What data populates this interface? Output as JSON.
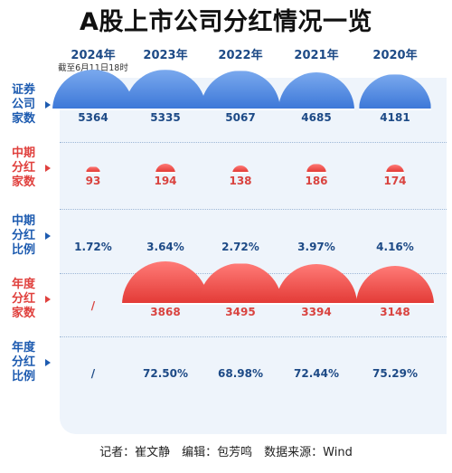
{
  "title": "A股上市公司分红情况一览",
  "note": "截至6月11日18时",
  "footer": "记者：崔文静　编辑：包芳鸣　数据来源：Wind",
  "colors": {
    "blue": "#3d78d8",
    "red": "#e33b37",
    "panel": "#eef4fb",
    "title": "#111111"
  },
  "chart_data": {
    "type": "table",
    "columns": [
      "2024年",
      "2023年",
      "2022年",
      "2021年",
      "2020年"
    ],
    "rows": [
      {
        "label_lines": [
          "证券",
          "公司",
          "家数"
        ],
        "color": "blue",
        "marker": "dome",
        "values": [
          5364,
          5335,
          5067,
          4685,
          4181
        ],
        "display": [
          "5364",
          "5335",
          "5067",
          "4685",
          "4181"
        ]
      },
      {
        "label_lines": [
          "中期",
          "分红",
          "家数"
        ],
        "color": "red",
        "marker": "dome",
        "values": [
          93,
          194,
          138,
          186,
          174
        ],
        "display": [
          "93",
          "194",
          "138",
          "186",
          "174"
        ]
      },
      {
        "label_lines": [
          "中期",
          "分红",
          "比例"
        ],
        "color": "blue",
        "marker": "none",
        "values": [
          1.72,
          3.64,
          2.72,
          3.97,
          4.16
        ],
        "display": [
          "1.72%",
          "3.64%",
          "2.72%",
          "3.97%",
          "4.16%"
        ]
      },
      {
        "label_lines": [
          "年度",
          "分红",
          "家数"
        ],
        "color": "red",
        "marker": "dome",
        "values": [
          null,
          3868,
          3495,
          3394,
          3148
        ],
        "display": [
          "/",
          "3868",
          "3495",
          "3394",
          "3148"
        ]
      },
      {
        "label_lines": [
          "年度",
          "分红",
          "比例"
        ],
        "color": "blue",
        "marker": "none",
        "values": [
          null,
          72.5,
          68.98,
          72.44,
          75.29
        ],
        "display": [
          "/",
          "72.50%",
          "68.98%",
          "72.44%",
          "75.29%"
        ]
      }
    ]
  }
}
